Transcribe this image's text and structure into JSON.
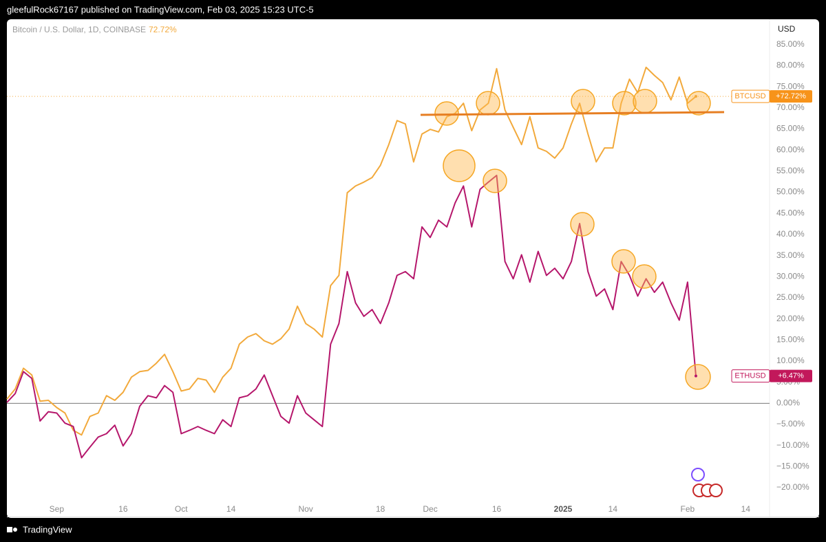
{
  "header": "gleefulRock67167 published on TradingView.com, Feb 03, 2025 15:23 UTC-5",
  "footer": "TradingView",
  "chart_data": {
    "type": "line",
    "title": "Bitcoin / U.S. Dollar, 1D, COINBASE",
    "legend_value": "72.72%",
    "axis_unit": "USD",
    "categories": [
      null,
      null,
      null,
      null,
      null,
      null,
      "Sep",
      null,
      null,
      null,
      null,
      null,
      null,
      null,
      "16",
      null,
      null,
      null,
      null,
      null,
      null,
      "Oct",
      null,
      null,
      null,
      null,
      null,
      "14",
      null,
      null,
      null,
      null,
      null,
      null,
      null,
      null,
      "Nov",
      null,
      null,
      null,
      null,
      null,
      null,
      null,
      null,
      "18",
      null,
      null,
      null,
      null,
      null,
      "Dec",
      null,
      null,
      null,
      null,
      null,
      null,
      null,
      "16",
      null,
      null,
      null,
      null,
      null,
      null,
      null,
      "2025",
      null,
      null,
      null,
      null,
      null,
      "14",
      null,
      null,
      null,
      null,
      null,
      null,
      null,
      null,
      "Feb",
      null,
      null,
      null,
      null,
      null,
      null,
      "14",
      null,
      null,
      null
    ],
    "series": [
      {
        "name": "BTCUSD",
        "color": "#f2a93b",
        "tag_color": "#f7931a",
        "values": [
          1,
          3.4,
          8.3,
          6.7,
          0.5,
          0.7,
          -1,
          -2.3,
          -6.4,
          -7.5,
          -3.1,
          -2.3,
          1.8,
          0.7,
          2.6,
          6.2,
          7.5,
          7.8,
          9.5,
          11.6,
          7.5,
          2.9,
          3.4,
          5.9,
          5.5,
          2.6,
          6.2,
          8.3,
          14,
          15.7,
          16.5,
          14.8,
          14,
          15.3,
          17.6,
          23,
          18.9,
          17.6,
          15.7,
          27.9,
          30.3,
          49.9,
          51.5,
          52.4,
          53.5,
          56.4,
          61.3,
          67,
          66.2,
          57.2,
          63.8,
          64.9,
          64.3,
          67.9,
          68.7,
          71.1,
          64.6,
          69.5,
          71.1,
          79.3,
          69.5,
          65.4,
          61.3,
          67.9,
          60.5,
          59.7,
          58.1,
          60.5,
          66.2,
          71.1,
          63.8,
          57.2,
          60.5,
          60.5,
          71.1,
          76.8,
          73.6,
          79.6,
          77.7,
          76,
          71.9,
          77.3,
          71.1,
          72.72,
          null,
          null,
          null,
          null,
          null,
          null,
          null,
          null,
          null
        ],
        "value_labels": [
          null,
          null,
          null,
          null,
          null,
          null,
          null,
          null,
          null,
          null,
          null,
          null,
          null,
          null,
          null,
          null,
          null,
          null,
          null,
          null,
          null,
          null,
          null,
          null,
          null,
          null,
          null,
          null,
          null,
          null,
          null,
          null,
          null,
          null,
          null,
          null,
          null,
          null,
          null,
          null,
          null,
          null,
          null,
          null,
          null,
          null,
          null,
          null,
          null,
          null,
          null,
          null,
          null,
          null,
          null,
          null,
          null,
          null,
          null,
          null,
          null,
          null,
          null,
          null,
          null,
          null,
          null,
          null,
          null,
          null,
          null,
          null,
          null,
          null,
          null,
          null,
          null,
          null,
          null,
          null,
          null,
          null,
          null,
          "+72.72%",
          null,
          null,
          null,
          null,
          null,
          null,
          null,
          null,
          null
        ]
      },
      {
        "name": "ETHUSD",
        "color": "#b5166b",
        "tag_color": "#c2185b",
        "values": [
          0.2,
          2.3,
          7.5,
          5.9,
          -4.2,
          -2,
          -2.3,
          -4.7,
          -5.5,
          -12.9,
          -10.4,
          -8,
          -7.2,
          -5.2,
          -10.1,
          -7.2,
          -0.7,
          1.8,
          1.3,
          4.2,
          2.6,
          -7.2,
          -6.4,
          -5.5,
          -6.4,
          -7.2,
          -3.9,
          -5.5,
          1.3,
          1.8,
          3.4,
          6.7,
          1.8,
          -3.1,
          -4.7,
          1.8,
          -2.3,
          -3.9,
          -5.5,
          14,
          18.9,
          31.2,
          23.8,
          20.6,
          22.2,
          18.9,
          23.8,
          30.3,
          31.2,
          29.5,
          41.8,
          39.3,
          43.4,
          41.8,
          47.5,
          51.5,
          41.8,
          50.7,
          52.4,
          54,
          33.6,
          29.5,
          35.2,
          28.7,
          36,
          30.3,
          32,
          29.5,
          33.6,
          42.6,
          31.2,
          25.4,
          27.1,
          22.2,
          33.6,
          30.3,
          25.4,
          29.5,
          26.3,
          28.7,
          23.8,
          19.7,
          28.7,
          6.47,
          null,
          null,
          null,
          null,
          null,
          null,
          null,
          null,
          null
        ],
        "value_labels": [
          null,
          null,
          null,
          null,
          null,
          null,
          null,
          null,
          null,
          null,
          null,
          null,
          null,
          null,
          null,
          null,
          null,
          null,
          null,
          null,
          null,
          null,
          null,
          null,
          null,
          null,
          null,
          null,
          null,
          null,
          null,
          null,
          null,
          null,
          null,
          null,
          null,
          null,
          null,
          null,
          null,
          null,
          null,
          null,
          null,
          null,
          null,
          null,
          null,
          null,
          null,
          null,
          null,
          null,
          null,
          null,
          null,
          null,
          null,
          null,
          null,
          null,
          null,
          null,
          null,
          null,
          null,
          null,
          null,
          null,
          null,
          null,
          null,
          null,
          null,
          null,
          null,
          null,
          null,
          null,
          null,
          null,
          null,
          "+6.47%",
          null,
          null,
          null,
          null,
          null,
          null,
          null,
          null,
          null
        ]
      }
    ],
    "ylim": [
      -27,
      91
    ],
    "yticks": [
      {
        "value": -20,
        "label": "−20.00%"
      },
      {
        "value": -15,
        "label": "−15.00%"
      },
      {
        "value": -10,
        "label": "−10.00%"
      },
      {
        "value": -5,
        "label": "−5.00%"
      },
      {
        "value": 0,
        "label": "0.00%"
      },
      {
        "value": 5,
        "label": "5.00%"
      },
      {
        "value": 10,
        "label": "10.00%"
      },
      {
        "value": 15,
        "label": "15.00%"
      },
      {
        "value": 20,
        "label": "20.00%"
      },
      {
        "value": 25,
        "label": "25.00%"
      },
      {
        "value": 30,
        "label": "30.00%"
      },
      {
        "value": 35,
        "label": "35.00%"
      },
      {
        "value": 40,
        "label": "40.00%"
      },
      {
        "value": 45,
        "label": "45.00%"
      },
      {
        "value": 50,
        "label": "50.00%"
      },
      {
        "value": 55,
        "label": "55.00%"
      },
      {
        "value": 60,
        "label": "60.00%"
      },
      {
        "value": 65,
        "label": "65.00%"
      },
      {
        "value": 70,
        "label": "70.00%"
      },
      {
        "value": 75,
        "label": "75.00%"
      },
      {
        "value": 80,
        "label": "80.00%"
      },
      {
        "value": 85,
        "label": "85.00%"
      }
    ],
    "grid": false
  }
}
